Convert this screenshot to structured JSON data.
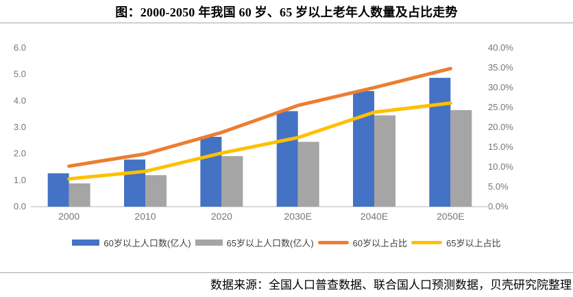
{
  "title": "图：2000-2050 年我国 60 岁、65 岁以上老年人数量及占比走势",
  "footer": {
    "source": "数据来源：全国人口普查数据、联合国人口预测数据，贝壳研究院整理"
  },
  "colors": {
    "bar60": "#4472C4",
    "bar65": "#A5A5A5",
    "line60": "#ED7D31",
    "line65": "#FFC000",
    "axis_text": "#757575",
    "baseline": "#D9D9D9",
    "legend_text": "#3F3F3F"
  },
  "legend": [
    {
      "type": "bar",
      "color_key": "bar60",
      "label": "60岁以上人口数(亿人)"
    },
    {
      "type": "bar",
      "color_key": "bar65",
      "label": "65岁以上人口数(亿人)"
    },
    {
      "type": "line",
      "color_key": "line60",
      "label": "60岁以上占比"
    },
    {
      "type": "line",
      "color_key": "line65",
      "label": "65岁以上占比"
    }
  ],
  "chart_data": {
    "type": "bar",
    "subtype": "combo-bar-line-dual-axis",
    "title": "图：2000-2050 年我国 60 岁、65 岁以上老年人数量及占比走势",
    "categories": [
      "2000",
      "2010",
      "2020",
      "2030E",
      "2040E",
      "2050E"
    ],
    "series": [
      {
        "name": "60岁以上人口数(亿人)",
        "type": "bar",
        "axis": "left",
        "color_key": "bar60",
        "values": [
          1.26,
          1.78,
          2.64,
          3.61,
          4.37,
          4.87
        ]
      },
      {
        "name": "65岁以上人口数(亿人)",
        "type": "bar",
        "axis": "left",
        "color_key": "bar65",
        "values": [
          0.88,
          1.19,
          1.91,
          2.45,
          3.45,
          3.65
        ]
      },
      {
        "name": "60岁以上占比",
        "type": "line",
        "axis": "right",
        "color_key": "line60",
        "values": [
          10.2,
          13.3,
          18.7,
          25.5,
          30.0,
          34.8
        ]
      },
      {
        "name": "65岁以上占比",
        "type": "line",
        "axis": "right",
        "color_key": "line65",
        "values": [
          7.0,
          8.9,
          13.5,
          17.4,
          23.8,
          26.1
        ]
      }
    ],
    "left_axis": {
      "min": 0,
      "max": 6,
      "step": 1,
      "tick_labels": [
        "0.0",
        "1.0",
        "2.0",
        "3.0",
        "4.0",
        "5.0",
        "6.0"
      ]
    },
    "right_axis": {
      "min": 0,
      "max": 40,
      "step": 5,
      "tick_labels": [
        "0.0%",
        "5.0%",
        "10.0%",
        "15.0%",
        "20.0%",
        "25.0%",
        "30.0%",
        "35.0%",
        "40.0%"
      ]
    },
    "grid": false,
    "legend_position": "bottom"
  }
}
